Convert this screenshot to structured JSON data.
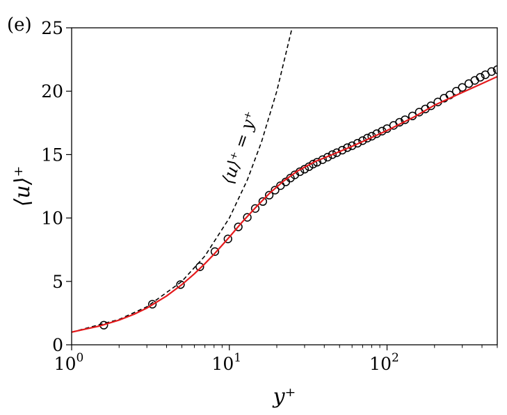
{
  "chart_data": {
    "type": "line",
    "panel_label": "(e)",
    "xlabel": "y⁺",
    "ylabel": "⟨u⟩⁺",
    "xscale": "log",
    "xlim": [
      1,
      500
    ],
    "ylim": [
      0,
      25
    ],
    "x_ticks": [
      {
        "value": 1,
        "base": "10",
        "exp": "0"
      },
      {
        "value": 10,
        "base": "10",
        "exp": "1"
      },
      {
        "value": 100,
        "base": "10",
        "exp": "2"
      }
    ],
    "y_ticks": [
      "0",
      "5",
      "10",
      "15",
      "20",
      "25"
    ],
    "annotation": "⟨u⟩⁺ = y⁺",
    "colors": {
      "solid_line": "#e41a1c",
      "markers": "#000000",
      "dashed": "#000000"
    },
    "series": [
      {
        "style": "solid",
        "color": "#e41a1c",
        "x": [
          1,
          1.5,
          2,
          2.5,
          3,
          4,
          5,
          6,
          7,
          8,
          9,
          10,
          12,
          15,
          18,
          22,
          27,
          35,
          45,
          60,
          80,
          100,
          150,
          200,
          300,
          400,
          500
        ],
        "y": [
          1.0,
          1.48,
          1.95,
          2.42,
          2.9,
          3.85,
          4.75,
          5.6,
          6.4,
          7.15,
          7.85,
          8.5,
          9.65,
          10.95,
          11.95,
          12.9,
          13.7,
          14.45,
          15.0,
          15.65,
          16.35,
          16.9,
          18.0,
          18.9,
          19.9,
          20.6,
          21.15
        ]
      },
      {
        "style": "markers",
        "color": "#000000",
        "x": [
          1.6,
          3.25,
          4.9,
          6.5,
          8.1,
          9.8,
          11.4,
          13.0,
          14.6,
          16.3,
          17.9,
          19.5,
          21.1,
          22.8,
          24.4,
          26.0,
          28,
          30,
          32,
          34,
          36,
          39,
          42,
          45,
          48,
          52,
          56,
          60,
          65,
          70,
          75,
          80,
          86,
          93,
          100,
          110,
          120,
          130,
          145,
          160,
          175,
          190,
          210,
          230,
          250,
          275,
          300,
          330,
          360,
          390,
          420,
          460,
          500
        ],
        "y": [
          1.55,
          3.2,
          4.75,
          6.15,
          7.35,
          8.35,
          9.3,
          10.05,
          10.75,
          11.3,
          11.8,
          12.2,
          12.55,
          12.85,
          13.15,
          13.4,
          13.65,
          13.85,
          14.05,
          14.25,
          14.4,
          14.6,
          14.8,
          15.0,
          15.15,
          15.35,
          15.55,
          15.7,
          15.9,
          16.1,
          16.3,
          16.45,
          16.65,
          16.85,
          17.05,
          17.3,
          17.55,
          17.75,
          18.05,
          18.35,
          18.6,
          18.85,
          19.15,
          19.45,
          19.7,
          20.0,
          20.3,
          20.6,
          20.85,
          21.1,
          21.3,
          21.55,
          21.7
        ]
      },
      {
        "style": "dashed",
        "color": "#000000",
        "x": [
          1,
          2,
          3,
          5,
          7,
          10,
          13,
          16,
          20,
          25
        ],
        "y": [
          1,
          2,
          3,
          5,
          7,
          10,
          13,
          16,
          20,
          25
        ]
      }
    ]
  }
}
